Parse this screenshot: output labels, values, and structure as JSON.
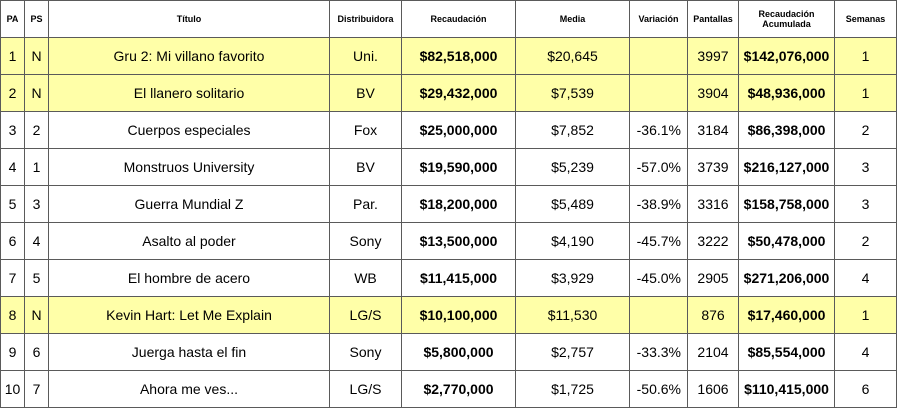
{
  "headers": {
    "pa": "PA",
    "ps": "PS",
    "title": "Título",
    "distributor": "Distribuidora",
    "gross": "Recaudación",
    "average": "Media",
    "change": "Variación",
    "screens": "Pantallas",
    "total_line1": "Recaudación",
    "total_line2": "Acumulada",
    "weeks": "Semanas"
  },
  "rows": [
    {
      "pa": "1",
      "ps": "N",
      "title": "Gru 2: Mi villano favorito",
      "distributor": "Uni.",
      "gross": "$82,518,000",
      "average": "$20,645",
      "change": "",
      "screens": "3997",
      "total": "$142,076,000",
      "weeks": "1",
      "highlight": true
    },
    {
      "pa": "2",
      "ps": "N",
      "title": "El llanero solitario",
      "distributor": "BV",
      "gross": "$29,432,000",
      "average": "$7,539",
      "change": "",
      "screens": "3904",
      "total": "$48,936,000",
      "weeks": "1",
      "highlight": true
    },
    {
      "pa": "3",
      "ps": "2",
      "title": "Cuerpos especiales",
      "distributor": "Fox",
      "gross": "$25,000,000",
      "average": "$7,852",
      "change": "-36.1%",
      "screens": "3184",
      "total": "$86,398,000",
      "weeks": "2",
      "highlight": false
    },
    {
      "pa": "4",
      "ps": "1",
      "title": "Monstruos University",
      "distributor": "BV",
      "gross": "$19,590,000",
      "average": "$5,239",
      "change": "-57.0%",
      "screens": "3739",
      "total": "$216,127,000",
      "weeks": "3",
      "highlight": false
    },
    {
      "pa": "5",
      "ps": "3",
      "title": "Guerra Mundial Z",
      "distributor": "Par.",
      "gross": "$18,200,000",
      "average": "$5,489",
      "change": "-38.9%",
      "screens": "3316",
      "total": "$158,758,000",
      "weeks": "3",
      "highlight": false
    },
    {
      "pa": "6",
      "ps": "4",
      "title": "Asalto al poder",
      "distributor": "Sony",
      "gross": "$13,500,000",
      "average": "$4,190",
      "change": "-45.7%",
      "screens": "3222",
      "total": "$50,478,000",
      "weeks": "2",
      "highlight": false
    },
    {
      "pa": "7",
      "ps": "5",
      "title": "El hombre de acero",
      "distributor": "WB",
      "gross": "$11,415,000",
      "average": "$3,929",
      "change": "-45.0%",
      "screens": "2905",
      "total": "$271,206,000",
      "weeks": "4",
      "highlight": false
    },
    {
      "pa": "8",
      "ps": "N",
      "title": "Kevin Hart: Let Me Explain",
      "distributor": "LG/S",
      "gross": "$10,100,000",
      "average": "$11,530",
      "change": "",
      "screens": "876",
      "total": "$17,460,000",
      "weeks": "1",
      "highlight": true
    },
    {
      "pa": "9",
      "ps": "6",
      "title": "Juerga hasta el fin",
      "distributor": "Sony",
      "gross": "$5,800,000",
      "average": "$2,757",
      "change": "-33.3%",
      "screens": "2104",
      "total": "$85,554,000",
      "weeks": "4",
      "highlight": false
    },
    {
      "pa": "10",
      "ps": "7",
      "title": "Ahora me ves...",
      "distributor": "LG/S",
      "gross": "$2,770,000",
      "average": "$1,725",
      "change": "-50.6%",
      "screens": "1606",
      "total": "$110,415,000",
      "weeks": "6",
      "highlight": false
    }
  ],
  "colors": {
    "highlight_row": "#ffffa8",
    "border": "#5a5a5a"
  }
}
